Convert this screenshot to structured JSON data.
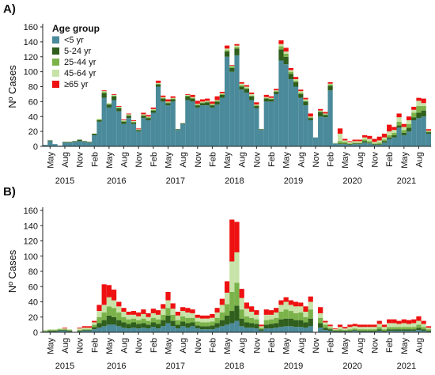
{
  "chart_data": [
    {
      "type": "bar",
      "panel_label": "A)",
      "ylabel": "Nº Cases",
      "ylim": [
        0,
        160
      ],
      "yticks": [
        0,
        20,
        40,
        60,
        80,
        100,
        120,
        140,
        160
      ],
      "stacked": true,
      "legend": {
        "title": "Age group",
        "position": "top-left"
      },
      "month_labels": [
        "May",
        "Aug",
        "Nov",
        "Feb",
        "May",
        "Aug",
        "Nov",
        "Feb",
        "May",
        "Aug",
        "Nov",
        "Feb",
        "May",
        "Aug",
        "Nov",
        "Feb",
        "May",
        "Aug",
        "Nov",
        "Feb",
        "May",
        "Aug",
        "Nov",
        "Feb",
        "May",
        "Aug"
      ],
      "year_labels": [
        "2015",
        "2016",
        "2017",
        "2018",
        "2019",
        "2020",
        "2021"
      ],
      "categories": [
        "2015-04",
        "2015-05",
        "2015-06",
        "2015-07",
        "2015-08",
        "2015-09",
        "2015-10",
        "2015-11",
        "2015-12",
        "2016-01",
        "2016-02",
        "2016-03",
        "2016-04",
        "2016-05",
        "2016-06",
        "2016-07",
        "2016-08",
        "2016-09",
        "2016-10",
        "2016-11",
        "2016-12",
        "2017-01",
        "2017-02",
        "2017-03",
        "2017-04",
        "2017-05",
        "2017-06",
        "2017-07",
        "2017-08",
        "2017-09",
        "2017-10",
        "2017-11",
        "2017-12",
        "2018-01",
        "2018-02",
        "2018-03",
        "2018-04",
        "2018-05",
        "2018-06",
        "2018-07",
        "2018-08",
        "2018-09",
        "2018-10",
        "2018-11",
        "2018-12",
        "2019-01",
        "2019-02",
        "2019-03",
        "2019-04",
        "2019-05",
        "2019-06",
        "2019-07",
        "2019-08",
        "2019-09",
        "2019-10",
        "2019-11",
        "2019-12",
        "2020-01",
        "2020-02",
        "2020-03",
        "2020-04",
        "2020-05",
        "2020-06",
        "2020-07",
        "2020-08",
        "2020-09",
        "2020-10",
        "2020-11",
        "2020-12",
        "2021-01",
        "2021-02",
        "2021-03",
        "2021-04",
        "2021-05",
        "2021-06",
        "2021-07",
        "2021-08",
        "2021-09",
        "2021-10"
      ],
      "series": [
        {
          "name": "<5 yr",
          "color": "#4a8a9a",
          "values": [
            2,
            7,
            3,
            1,
            5,
            5,
            6,
            7,
            6,
            5,
            15,
            33,
            65,
            52,
            62,
            47,
            30,
            38,
            30,
            20,
            38,
            35,
            45,
            80,
            60,
            55,
            60,
            22,
            30,
            62,
            60,
            52,
            55,
            55,
            52,
            56,
            65,
            120,
            100,
            122,
            76,
            72,
            62,
            51,
            22,
            60,
            60,
            70,
            115,
            110,
            90,
            80,
            65,
            55,
            35,
            12,
            40,
            39,
            75,
            4,
            3,
            3,
            2,
            3,
            3,
            5,
            4,
            2,
            2,
            5,
            10,
            12,
            25,
            15,
            20,
            35,
            38,
            40,
            17
          ]
        },
        {
          "name": "5-24 yr",
          "color": "#2f5e1d",
          "values": [
            0,
            1,
            0,
            0,
            1,
            1,
            1,
            2,
            1,
            1,
            2,
            2,
            6,
            4,
            5,
            4,
            3,
            3,
            2,
            2,
            3,
            3,
            3,
            3,
            4,
            3,
            3,
            1,
            1,
            5,
            4,
            3,
            3,
            4,
            3,
            4,
            4,
            7,
            5,
            9,
            4,
            5,
            5,
            3,
            1,
            4,
            3,
            3,
            15,
            10,
            7,
            6,
            5,
            5,
            3,
            0,
            6,
            3,
            6,
            0,
            1,
            1,
            1,
            1,
            1,
            2,
            1,
            1,
            1,
            2,
            2,
            3,
            3,
            3,
            5,
            4,
            7,
            8,
            2
          ]
        },
        {
          "name": "25-44 yr",
          "color": "#7bb34a",
          "values": [
            0,
            0,
            0,
            0,
            0,
            0,
            0,
            0,
            0,
            0,
            0,
            1,
            2,
            1,
            1,
            1,
            1,
            1,
            1,
            0,
            1,
            1,
            1,
            1,
            1,
            1,
            1,
            0,
            0,
            1,
            1,
            1,
            1,
            1,
            1,
            1,
            1,
            2,
            2,
            2,
            2,
            1,
            1,
            1,
            0,
            1,
            1,
            1,
            4,
            4,
            3,
            2,
            2,
            1,
            1,
            0,
            1,
            1,
            2,
            0,
            3,
            2,
            1,
            1,
            1,
            2,
            2,
            1,
            2,
            2,
            3,
            3,
            5,
            4,
            5,
            6,
            9,
            6,
            1
          ]
        },
        {
          "name": "45-64 yr",
          "color": "#c7e3a8",
          "values": [
            0,
            0,
            0,
            0,
            0,
            0,
            0,
            0,
            0,
            0,
            0,
            1,
            1,
            1,
            1,
            1,
            1,
            1,
            1,
            1,
            1,
            1,
            1,
            1,
            1,
            1,
            1,
            0,
            0,
            1,
            1,
            1,
            1,
            1,
            1,
            1,
            1,
            2,
            1,
            2,
            2,
            2,
            2,
            1,
            0,
            1,
            1,
            1,
            3,
            3,
            2,
            2,
            2,
            2,
            1,
            0,
            1,
            1,
            1,
            1,
            10,
            2,
            2,
            2,
            2,
            3,
            3,
            2,
            3,
            3,
            5,
            4,
            6,
            4,
            5,
            4,
            7,
            4,
            1
          ]
        },
        {
          "name": "≥65 yr",
          "color": "#ee1111",
          "values": [
            0,
            0,
            0,
            0,
            0,
            0,
            0,
            0,
            0,
            0,
            0,
            0,
            1,
            0,
            1,
            1,
            1,
            1,
            1,
            1,
            2,
            2,
            2,
            3,
            2,
            3,
            2,
            0,
            0,
            1,
            3,
            4,
            3,
            3,
            3,
            5,
            2,
            4,
            1,
            2,
            2,
            2,
            2,
            3,
            0,
            3,
            2,
            2,
            5,
            5,
            3,
            3,
            2,
            2,
            4,
            0,
            2,
            2,
            2,
            0,
            7,
            2,
            1,
            2,
            2,
            3,
            4,
            4,
            5,
            5,
            9,
            4,
            5,
            4,
            5,
            4,
            4,
            6,
            2
          ]
        }
      ]
    },
    {
      "type": "bar",
      "panel_label": "B)",
      "ylabel": "Nº Cases",
      "ylim": [
        0,
        160
      ],
      "yticks": [
        0,
        20,
        40,
        60,
        80,
        100,
        120,
        140,
        160
      ],
      "stacked": true,
      "month_labels": [
        "May",
        "Aug",
        "Nov",
        "Feb",
        "May",
        "Aug",
        "Nov",
        "Feb",
        "May",
        "Aug",
        "Nov",
        "Feb",
        "May",
        "Aug",
        "Nov",
        "Feb",
        "May",
        "Aug",
        "Nov",
        "Feb",
        "May",
        "Aug",
        "Nov",
        "Feb",
        "May",
        "Aug"
      ],
      "year_labels": [
        "2015",
        "2016",
        "2017",
        "2018",
        "2019",
        "2020",
        "2021"
      ],
      "categories": [
        "2015-04",
        "2015-05",
        "2015-06",
        "2015-07",
        "2015-08",
        "2015-09",
        "2015-10",
        "2015-11",
        "2015-12",
        "2016-01",
        "2016-02",
        "2016-03",
        "2016-04",
        "2016-05",
        "2016-06",
        "2016-07",
        "2016-08",
        "2016-09",
        "2016-10",
        "2016-11",
        "2016-12",
        "2017-01",
        "2017-02",
        "2017-03",
        "2017-04",
        "2017-05",
        "2017-06",
        "2017-07",
        "2017-08",
        "2017-09",
        "2017-10",
        "2017-11",
        "2017-12",
        "2018-01",
        "2018-02",
        "2018-03",
        "2018-04",
        "2018-05",
        "2018-06",
        "2018-07",
        "2018-08",
        "2018-09",
        "2018-10",
        "2018-11",
        "2018-12",
        "2019-01",
        "2019-02",
        "2019-03",
        "2019-04",
        "2019-05",
        "2019-06",
        "2019-07",
        "2019-08",
        "2019-09",
        "2019-10",
        "2019-11",
        "2019-12",
        "2020-01",
        "2020-02",
        "2020-03",
        "2020-04",
        "2020-05",
        "2020-06",
        "2020-07",
        "2020-08",
        "2020-09",
        "2020-10",
        "2020-11",
        "2020-12",
        "2021-01",
        "2021-02",
        "2021-03",
        "2021-04",
        "2021-05",
        "2021-06",
        "2021-07",
        "2021-08",
        "2021-09",
        "2021-10"
      ],
      "series": [
        {
          "name": "<5 yr",
          "color": "#4a8a9a",
          "values": [
            1,
            1,
            1,
            2,
            2,
            1,
            0,
            1,
            2,
            2,
            4,
            6,
            8,
            10,
            10,
            8,
            6,
            5,
            6,
            5,
            6,
            5,
            7,
            5,
            8,
            12,
            8,
            5,
            8,
            6,
            8,
            5,
            4,
            4,
            4,
            6,
            8,
            10,
            12,
            15,
            8,
            6,
            6,
            5,
            2,
            5,
            5,
            6,
            7,
            8,
            8,
            7,
            7,
            6,
            8,
            0,
            6,
            3,
            2,
            1,
            1,
            1,
            1,
            2,
            1,
            1,
            1,
            1,
            2,
            1,
            2,
            2,
            2,
            2,
            2,
            2,
            3,
            2,
            1
          ]
        },
        {
          "name": "5-24 yr",
          "color": "#2f5e1d",
          "values": [
            0,
            1,
            1,
            1,
            1,
            1,
            0,
            1,
            1,
            1,
            3,
            6,
            8,
            12,
            10,
            8,
            7,
            6,
            7,
            6,
            6,
            5,
            6,
            6,
            8,
            10,
            7,
            5,
            6,
            6,
            5,
            4,
            4,
            4,
            5,
            6,
            8,
            12,
            16,
            20,
            10,
            7,
            6,
            6,
            2,
            5,
            6,
            6,
            10,
            10,
            10,
            9,
            9,
            7,
            10,
            0,
            6,
            3,
            2,
            1,
            1,
            1,
            1,
            1,
            1,
            1,
            1,
            1,
            2,
            1,
            2,
            2,
            2,
            2,
            2,
            2,
            3,
            2,
            1
          ]
        },
        {
          "name": "25-44 yr",
          "color": "#7bb34a",
          "values": [
            1,
            1,
            1,
            1,
            1,
            1,
            0,
            1,
            1,
            1,
            3,
            8,
            10,
            12,
            12,
            10,
            7,
            6,
            5,
            5,
            6,
            5,
            6,
            6,
            7,
            10,
            8,
            6,
            7,
            7,
            6,
            5,
            5,
            5,
            5,
            7,
            10,
            15,
            25,
            30,
            12,
            8,
            7,
            6,
            2,
            6,
            6,
            7,
            10,
            12,
            10,
            9,
            10,
            7,
            12,
            0,
            7,
            4,
            2,
            1,
            2,
            1,
            2,
            2,
            2,
            2,
            2,
            2,
            3,
            2,
            3,
            3,
            3,
            3,
            3,
            3,
            4,
            3,
            2
          ]
        },
        {
          "name": "45-64 yr",
          "color": "#c7e3a8",
          "values": [
            1,
            1,
            1,
            1,
            1,
            1,
            0,
            2,
            2,
            2,
            3,
            8,
            10,
            12,
            10,
            8,
            7,
            6,
            5,
            5,
            6,
            5,
            6,
            6,
            8,
            10,
            8,
            6,
            7,
            7,
            6,
            5,
            5,
            5,
            5,
            7,
            10,
            15,
            40,
            40,
            15,
            10,
            8,
            6,
            2,
            7,
            6,
            7,
            9,
            10,
            8,
            9,
            8,
            7,
            10,
            0,
            6,
            3,
            2,
            1,
            3,
            2,
            3,
            3,
            3,
            3,
            3,
            3,
            4,
            3,
            5,
            5,
            4,
            5,
            4,
            5,
            5,
            4,
            2
          ]
        },
        {
          "name": "≥65 yr",
          "color": "#ee1111",
          "values": [
            0,
            0,
            0,
            0,
            1,
            0,
            0,
            1,
            2,
            2,
            2,
            8,
            27,
            16,
            14,
            6,
            5,
            4,
            5,
            5,
            6,
            5,
            6,
            6,
            6,
            11,
            7,
            5,
            5,
            6,
            5,
            4,
            4,
            4,
            5,
            6,
            8,
            15,
            55,
            40,
            12,
            8,
            7,
            6,
            2,
            7,
            6,
            6,
            6,
            6,
            6,
            6,
            5,
            7,
            7,
            0,
            8,
            2,
            2,
            1,
            3,
            2,
            3,
            3,
            3,
            3,
            3,
            3,
            4,
            3,
            5,
            5,
            4,
            5,
            5,
            5,
            6,
            4,
            2
          ]
        }
      ]
    }
  ]
}
